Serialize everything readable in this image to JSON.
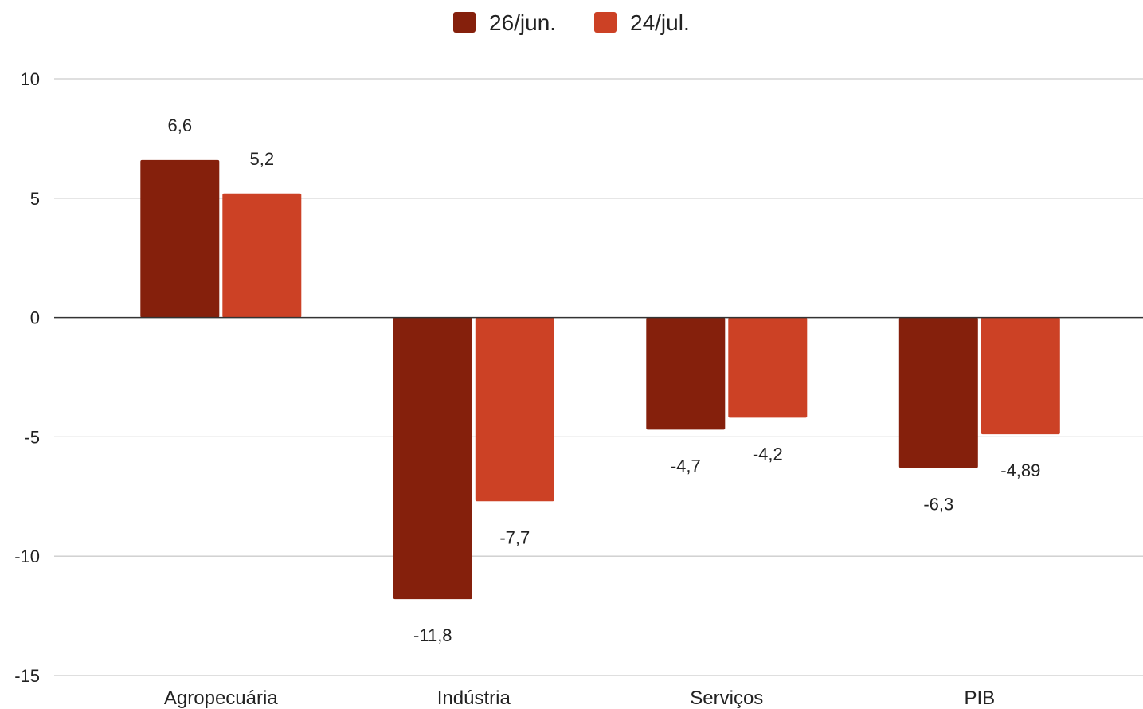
{
  "chart_data": {
    "type": "bar",
    "categories": [
      "Agropecuária",
      "Indústria",
      "Serviços",
      "PIB"
    ],
    "series": [
      {
        "name": "26/jun.",
        "color": "#85200c",
        "values": [
          6.6,
          -11.8,
          -4.7,
          -6.3
        ],
        "labels": [
          "6,6",
          "-11,8",
          "-4,7",
          "-6,3"
        ]
      },
      {
        "name": "24/jul.",
        "color": "#cc4125",
        "values": [
          5.2,
          -7.7,
          -4.2,
          -4.89
        ],
        "labels": [
          "5,2",
          "-7,7",
          "-4,2",
          "-4,89"
        ]
      }
    ],
    "ylim": [
      -15,
      10
    ],
    "yticks": [
      10,
      5,
      0,
      -5,
      -10,
      -15
    ],
    "ytick_labels": [
      "10",
      "5",
      "0",
      "-5",
      "-10",
      "-15"
    ],
    "title": "",
    "xlabel": "",
    "ylabel": "",
    "grid": true,
    "legend_position": "top"
  }
}
